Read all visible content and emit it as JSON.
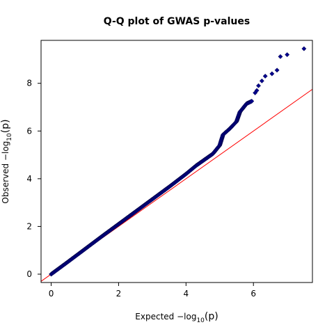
{
  "chart_data": {
    "type": "scatter",
    "title": "Q-Q plot of GWAS p-values",
    "xlabel": {
      "prefix": "Expected  −log",
      "sub": "10",
      "suffix": "(p)"
    },
    "ylabel": {
      "prefix": "Observed  −log",
      "sub": "10",
      "suffix": "(p)"
    },
    "xlim": [
      -0.3,
      7.75
    ],
    "ylim": [
      -0.35,
      9.8
    ],
    "x_ticks": [
      0,
      2,
      4,
      6
    ],
    "y_ticks": [
      0,
      2,
      4,
      6,
      8
    ],
    "grid": false,
    "reference_line": {
      "slope": 1,
      "intercept": 0,
      "color": "#ff0000"
    },
    "series": [
      {
        "marker": "diamond",
        "color": "#00008b",
        "curve_points": [
          [
            0.0,
            0.0
          ],
          [
            0.5,
            0.52
          ],
          [
            1.0,
            1.05
          ],
          [
            1.5,
            1.58
          ],
          [
            2.0,
            2.1
          ],
          [
            2.5,
            2.62
          ],
          [
            3.0,
            3.14
          ],
          [
            3.5,
            3.66
          ],
          [
            4.0,
            4.2
          ],
          [
            4.3,
            4.55
          ],
          [
            4.6,
            4.85
          ],
          [
            4.8,
            5.05
          ],
          [
            5.0,
            5.4
          ],
          [
            5.1,
            5.85
          ],
          [
            5.3,
            6.1
          ],
          [
            5.5,
            6.4
          ],
          [
            5.6,
            6.8
          ],
          [
            5.8,
            7.15
          ],
          [
            5.95,
            7.25
          ]
        ],
        "tail_points": [
          [
            6.05,
            7.6
          ],
          [
            6.1,
            7.7
          ],
          [
            6.15,
            7.9
          ],
          [
            6.25,
            8.1
          ],
          [
            6.35,
            8.3
          ],
          [
            6.55,
            8.4
          ],
          [
            6.7,
            8.55
          ],
          [
            6.8,
            9.12
          ],
          [
            7.0,
            9.2
          ],
          [
            7.5,
            9.45
          ]
        ]
      }
    ]
  }
}
